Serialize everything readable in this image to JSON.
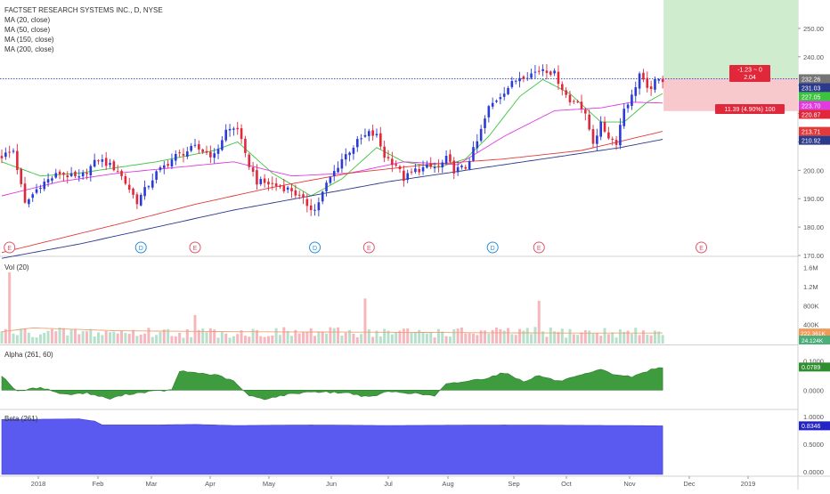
{
  "header": {
    "symbol_title": "FACTSET RESEARCH SYSTEMS INC., D, NYSE",
    "ma_labels": [
      "MA (20, close)",
      "MA (50, close)",
      "MA (150, close)",
      "MA (200, close)"
    ]
  },
  "panes": {
    "vol_title": "Vol (20)",
    "alpha_title": "Alpha (261, 60)",
    "beta_title": "Beta (261)"
  },
  "colors": {
    "up": "#2a3bd6",
    "down": "#e0283a",
    "ma20": "#3cc43c",
    "ma50": "#e03ae0",
    "ma150": "#e23a3a",
    "ma200": "#2c3a8c",
    "vol_up": "#b7e0cb",
    "vol_down": "#f5b7bd",
    "alpha": "#3e9b3e",
    "beta": "#5a5af0",
    "profit": "#cfeccf",
    "loss": "#f8c9cc"
  },
  "chart_data": {
    "type": "candlestick",
    "xaxis_labels": [
      "2018",
      "Feb",
      "Mar",
      "Apr",
      "May",
      "Jun",
      "Jul",
      "Aug",
      "Sep",
      "Oct",
      "Nov",
      "Dec",
      "2019"
    ],
    "price_axis": {
      "ticks": [
        "250.00",
        "240.00",
        "230.00",
        "220.00",
        "210.00",
        "200.00",
        "190.00",
        "180.00",
        "170.00"
      ],
      "ylim": [
        170,
        260
      ]
    },
    "price_path": [
      [
        0,
        205
      ],
      [
        3,
        207
      ],
      [
        6,
        188
      ],
      [
        10,
        195
      ],
      [
        15,
        199
      ],
      [
        20,
        197
      ],
      [
        25,
        204
      ],
      [
        30,
        200
      ],
      [
        35,
        189
      ],
      [
        40,
        199
      ],
      [
        45,
        205
      ],
      [
        50,
        208
      ],
      [
        55,
        205
      ],
      [
        58,
        214
      ],
      [
        61,
        215
      ],
      [
        63,
        205
      ],
      [
        66,
        196
      ],
      [
        70,
        195
      ],
      [
        75,
        193
      ],
      [
        79,
        188
      ],
      [
        81,
        186
      ],
      [
        84,
        195
      ],
      [
        88,
        204
      ],
      [
        92,
        210
      ],
      [
        95,
        213
      ],
      [
        97,
        212
      ],
      [
        99,
        205
      ],
      [
        102,
        202
      ],
      [
        104,
        197
      ],
      [
        107,
        200
      ],
      [
        110,
        201
      ],
      [
        113,
        201
      ],
      [
        115,
        204
      ],
      [
        117,
        200
      ],
      [
        120,
        201
      ],
      [
        123,
        210
      ],
      [
        126,
        222
      ],
      [
        130,
        228
      ],
      [
        134,
        233
      ],
      [
        137,
        234
      ],
      [
        140,
        236
      ],
      [
        143,
        234
      ],
      [
        145,
        229
      ],
      [
        147,
        224
      ],
      [
        149,
        225
      ],
      [
        151,
        219
      ],
      [
        153,
        210
      ],
      [
        155,
        216
      ],
      [
        157,
        212
      ],
      [
        159,
        210
      ],
      [
        161,
        222
      ],
      [
        163,
        226
      ],
      [
        165,
        234
      ],
      [
        167,
        228
      ],
      [
        169,
        231
      ],
      [
        171,
        232
      ]
    ],
    "moving_averages": [
      {
        "name": "MA (20, close)",
        "current": "227.05",
        "points": [
          [
            0,
            203
          ],
          [
            10,
            198
          ],
          [
            20,
            199
          ],
          [
            30,
            201
          ],
          [
            40,
            203
          ],
          [
            55,
            207
          ],
          [
            61,
            210
          ],
          [
            70,
            199
          ],
          [
            80,
            191
          ],
          [
            88,
            197
          ],
          [
            97,
            208
          ],
          [
            104,
            203
          ],
          [
            113,
            201
          ],
          [
            120,
            204
          ],
          [
            126,
            212
          ],
          [
            134,
            226
          ],
          [
            140,
            232
          ],
          [
            147,
            227
          ],
          [
            155,
            217
          ],
          [
            161,
            217
          ],
          [
            167,
            224
          ],
          [
            171,
            227.05
          ]
        ]
      },
      {
        "name": "MA (50, close)",
        "current": "223.70",
        "points": [
          [
            0,
            191
          ],
          [
            15,
            196
          ],
          [
            30,
            199
          ],
          [
            45,
            201
          ],
          [
            60,
            203
          ],
          [
            75,
            198
          ],
          [
            90,
            199
          ],
          [
            104,
            203
          ],
          [
            118,
            202
          ],
          [
            130,
            212
          ],
          [
            143,
            221
          ],
          [
            155,
            222
          ],
          [
            163,
            224
          ],
          [
            171,
            223.7
          ]
        ]
      },
      {
        "name": "MA (150, close)",
        "current": "213.71",
        "points": [
          [
            0,
            171
          ],
          [
            15,
            176
          ],
          [
            30,
            181
          ],
          [
            50,
            188
          ],
          [
            70,
            194
          ],
          [
            90,
            199
          ],
          [
            110,
            202
          ],
          [
            130,
            204
          ],
          [
            150,
            207
          ],
          [
            171,
            213.71
          ]
        ]
      },
      {
        "name": "MA (200, close)",
        "current": "210.92",
        "points": [
          [
            0,
            169
          ],
          [
            20,
            174
          ],
          [
            40,
            180
          ],
          [
            60,
            186
          ],
          [
            80,
            191
          ],
          [
            100,
            196
          ],
          [
            120,
            200
          ],
          [
            140,
            204
          ],
          [
            160,
            208
          ],
          [
            171,
            210.92
          ]
        ]
      }
    ],
    "price_labels": [
      {
        "value": "232.26",
        "y": 232.26,
        "color": "#757575"
      },
      {
        "value": "231.03",
        "y": 231.03,
        "color": "#2c3a8c"
      },
      {
        "value": "227.05",
        "y": 227.05,
        "color": "#3cc43c"
      },
      {
        "value": "223.70",
        "y": 223.7,
        "color": "#e03ae0"
      },
      {
        "value": "220.87",
        "y": 220.87,
        "color": "#e0283a"
      },
      {
        "value": "213.71",
        "y": 213.71,
        "color": "#e23a3a"
      },
      {
        "value": "210.92",
        "y": 210.92,
        "color": "#2c3a8c"
      }
    ],
    "position_tool": {
      "entry": 232.26,
      "stop": 220.87,
      "label_diff": "-1.23 ~ 0",
      "label_ratio": "2.04",
      "label_stop": "11.39 (4.90%) 100"
    },
    "events": [
      {
        "x": 2,
        "label": "E",
        "kind": "earnings"
      },
      {
        "x": 36,
        "label": "D",
        "kind": "dividend"
      },
      {
        "x": 50,
        "label": "E",
        "kind": "earnings"
      },
      {
        "x": 81,
        "label": "D",
        "kind": "dividend"
      },
      {
        "x": 95,
        "label": "E",
        "kind": "earnings"
      },
      {
        "x": 127,
        "label": "D",
        "kind": "dividend"
      },
      {
        "x": 139,
        "label": "E",
        "kind": "earnings"
      },
      {
        "x": 181,
        "label": "E",
        "kind": "earnings"
      }
    ],
    "volume": {
      "ticks": [
        "1.6M",
        "1.2M",
        "800K",
        "400K"
      ],
      "ylim": [
        0,
        1800000
      ],
      "current_ma": "222.361K",
      "current_vol": "24.124K",
      "spikes": [
        [
          2,
          1500000
        ],
        [
          50,
          600000
        ],
        [
          94,
          950000
        ],
        [
          139,
          900000
        ]
      ],
      "ma_path": [
        [
          0,
          250000
        ],
        [
          8,
          330000
        ],
        [
          30,
          270000
        ],
        [
          60,
          250000
        ],
        [
          94,
          240000
        ],
        [
          120,
          230000
        ],
        [
          150,
          220000
        ],
        [
          171,
          222361
        ]
      ]
    },
    "alpha": {
      "ticks": [
        "0.1000",
        "0.0000"
      ],
      "ylim": [
        -0.06,
        0.15
      ],
      "current": "0.0789",
      "path": [
        [
          0,
          0.05
        ],
        [
          4,
          -0.005
        ],
        [
          10,
          0.01
        ],
        [
          16,
          -0.015
        ],
        [
          22,
          -0.01
        ],
        [
          28,
          -0.03
        ],
        [
          32,
          -0.015
        ],
        [
          38,
          -0.005
        ],
        [
          44,
          0.0
        ],
        [
          46,
          0.065
        ],
        [
          50,
          0.06
        ],
        [
          56,
          0.05
        ],
        [
          60,
          0.03
        ],
        [
          64,
          -0.02
        ],
        [
          68,
          -0.03
        ],
        [
          74,
          -0.015
        ],
        [
          80,
          -0.005
        ],
        [
          90,
          -0.01
        ],
        [
          95,
          -0.025
        ],
        [
          100,
          -0.005
        ],
        [
          106,
          -0.01
        ],
        [
          112,
          -0.02
        ],
        [
          115,
          0.02
        ],
        [
          120,
          0.03
        ],
        [
          125,
          0.04
        ],
        [
          130,
          0.06
        ],
        [
          135,
          0.03
        ],
        [
          139,
          0.05
        ],
        [
          144,
          0.03
        ],
        [
          150,
          0.05
        ],
        [
          155,
          0.07
        ],
        [
          158,
          0.055
        ],
        [
          163,
          0.045
        ],
        [
          168,
          0.07
        ],
        [
          171,
          0.0789
        ]
      ]
    },
    "beta": {
      "ticks": [
        "1.0000",
        "0.5000",
        "0.0000"
      ],
      "ylim": [
        -0.05,
        1.1
      ],
      "current": "0.8346",
      "path": [
        [
          0,
          0.95
        ],
        [
          20,
          0.96
        ],
        [
          24,
          0.92
        ],
        [
          26,
          0.85
        ],
        [
          40,
          0.85
        ],
        [
          50,
          0.86
        ],
        [
          60,
          0.84
        ],
        [
          80,
          0.85
        ],
        [
          100,
          0.84
        ],
        [
          130,
          0.85
        ],
        [
          160,
          0.84
        ],
        [
          171,
          0.8346
        ]
      ]
    }
  }
}
